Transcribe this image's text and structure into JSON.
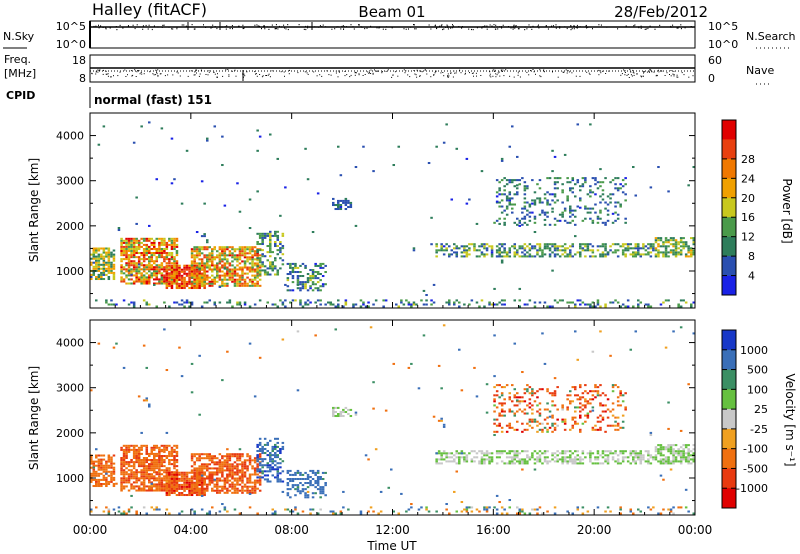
{
  "header": {
    "station": "Halley (fitACF)",
    "beam": "Beam 01",
    "date": "28/Feb/2012"
  },
  "top_panels": {
    "nsky_label": "N.Sky",
    "nsky_ticks": [
      "10^5",
      "10^0"
    ],
    "nsearch_label": "N.Search",
    "nsearch_ticks": [
      "10^5",
      "10^0"
    ],
    "freq_label": [
      "Freq.",
      "[MHz]"
    ],
    "freq_ticks": [
      "18",
      "8"
    ],
    "nave_label": "Nave",
    "nave_ticks": [
      "60",
      "0"
    ],
    "cpid_label": "CPID",
    "cpid_value": "normal (fast) 151"
  },
  "colors": {
    "power": [
      "#1a22e6",
      "#2a4fb0",
      "#2e7d5b",
      "#4a9a4a",
      "#c8c81e",
      "#f0a000",
      "#f07800",
      "#e84010",
      "#e00000"
    ],
    "velocity": [
      "#1838c8",
      "#3a6fb8",
      "#3b8f64",
      "#66c040",
      "#c8c8c8",
      "#f0a020",
      "#f07010",
      "#e83a10",
      "#e00000"
    ]
  },
  "chart_data": [
    {
      "type": "heatmap",
      "title": "",
      "xlabel": "",
      "ylabel": "Slant Range [km]",
      "x_ticks": [
        "00:00",
        "04:00",
        "08:00",
        "12:00",
        "16:00",
        "20:00",
        "00:00"
      ],
      "y_ticks": [
        "1000",
        "2000",
        "3000",
        "4000"
      ],
      "xlim_hours": [
        0,
        24
      ],
      "ylim_km": [
        180,
        4500
      ],
      "colorbar_label": "Power [dB]",
      "colorbar_ticks": [
        "4",
        "8",
        "12",
        "16",
        "20",
        "24",
        "28"
      ],
      "colorbar_range": [
        0,
        30
      ],
      "patches": [
        {
          "t": [
            0.0,
            0.9
          ],
          "r": [
            800,
            1500
          ],
          "dens": 0.7,
          "v": [
            6,
            20
          ]
        },
        {
          "t": [
            1.2,
            3.5
          ],
          "r": [
            700,
            1700
          ],
          "dens": 0.75,
          "v": [
            10,
            30
          ]
        },
        {
          "t": [
            3.0,
            4.5
          ],
          "r": [
            600,
            1100
          ],
          "dens": 0.85,
          "v": [
            18,
            30
          ]
        },
        {
          "t": [
            4.0,
            6.7
          ],
          "r": [
            650,
            1550
          ],
          "dens": 0.7,
          "v": [
            10,
            28
          ]
        },
        {
          "t": [
            6.6,
            7.6
          ],
          "r": [
            900,
            1850
          ],
          "dens": 0.45,
          "v": [
            5,
            16
          ]
        },
        {
          "t": [
            7.8,
            9.3
          ],
          "r": [
            550,
            1150
          ],
          "dens": 0.45,
          "v": [
            3,
            14
          ]
        },
        {
          "t": [
            9.6,
            10.3
          ],
          "r": [
            2350,
            2600
          ],
          "dens": 0.6,
          "v": [
            3,
            8
          ]
        },
        {
          "t": [
            13.7,
            22.4
          ],
          "r": [
            1300,
            1600
          ],
          "dens": 0.5,
          "v": [
            4,
            16
          ]
        },
        {
          "t": [
            22.4,
            24.0
          ],
          "r": [
            1300,
            1750
          ],
          "dens": 0.65,
          "v": [
            8,
            18
          ]
        },
        {
          "t": [
            16.0,
            21.3
          ],
          "r": [
            2000,
            3050
          ],
          "dens": 0.22,
          "v": [
            3,
            12
          ]
        },
        {
          "t": [
            0.0,
            24.0
          ],
          "r": [
            190,
            350
          ],
          "dens": 0.2,
          "v": [
            2,
            14
          ]
        },
        {
          "t": [
            0.0,
            24.0
          ],
          "r": [
            400,
            4400
          ],
          "dens": 0.006,
          "v": [
            2,
            10
          ]
        }
      ]
    },
    {
      "type": "heatmap",
      "title": "",
      "xlabel": "Time UT",
      "ylabel": "Slant Range [km]",
      "x_ticks": [
        "00:00",
        "04:00",
        "08:00",
        "12:00",
        "16:00",
        "20:00",
        "00:00"
      ],
      "y_ticks": [
        "1000",
        "2000",
        "3000",
        "4000"
      ],
      "xlim_hours": [
        0,
        24
      ],
      "ylim_km": [
        180,
        4500
      ],
      "colorbar_label": "Velocity [m s⁻¹]",
      "colorbar_ticks": [
        "1000",
        "500",
        "100",
        "25",
        "-25",
        "-100",
        "-500",
        "-1000"
      ],
      "colorbar_range": [
        -1000,
        1000
      ],
      "patches": [
        {
          "t": [
            0.0,
            0.9
          ],
          "r": [
            800,
            1500
          ],
          "dens": 0.7,
          "v": [
            -600,
            -100
          ]
        },
        {
          "t": [
            1.2,
            3.5
          ],
          "r": [
            700,
            1700
          ],
          "dens": 0.75,
          "v": [
            -700,
            -100
          ]
        },
        {
          "t": [
            3.0,
            4.5
          ],
          "r": [
            600,
            1100
          ],
          "dens": 0.85,
          "v": [
            -900,
            -150
          ]
        },
        {
          "t": [
            4.0,
            6.7
          ],
          "r": [
            650,
            1550
          ],
          "dens": 0.7,
          "v": [
            -800,
            -100
          ]
        },
        {
          "t": [
            6.6,
            7.6
          ],
          "r": [
            900,
            1850
          ],
          "dens": 0.45,
          "v": [
            30,
            700
          ]
        },
        {
          "t": [
            7.8,
            9.3
          ],
          "r": [
            550,
            1150
          ],
          "dens": 0.45,
          "v": [
            50,
            500
          ]
        },
        {
          "t": [
            9.6,
            10.3
          ],
          "r": [
            2350,
            2600
          ],
          "dens": 0.6,
          "v": [
            -20,
            20
          ]
        },
        {
          "t": [
            13.7,
            22.4
          ],
          "r": [
            1300,
            1600
          ],
          "dens": 0.5,
          "v": [
            -20,
            20
          ]
        },
        {
          "t": [
            22.4,
            24.0
          ],
          "r": [
            1300,
            1750
          ],
          "dens": 0.65,
          "v": [
            -20,
            20
          ]
        },
        {
          "t": [
            16.0,
            21.3
          ],
          "r": [
            2000,
            3050
          ],
          "dens": 0.22,
          "v": [
            -900,
            100
          ]
        },
        {
          "t": [
            0.0,
            24.0
          ],
          "r": [
            190,
            350
          ],
          "dens": 0.2,
          "v": [
            -200,
            200
          ]
        },
        {
          "t": [
            0.0,
            24.0
          ],
          "r": [
            400,
            4400
          ],
          "dens": 0.006,
          "v": [
            -300,
            300
          ]
        }
      ]
    }
  ]
}
